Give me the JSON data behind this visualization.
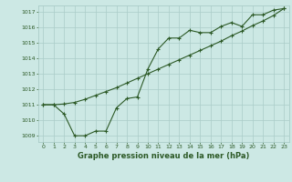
{
  "title": "Graphe pression niveau de la mer (hPa)",
  "bg_color": "#cce8e4",
  "grid_color": "#aaccc8",
  "line_color": "#2d5a27",
  "text_color": "#2d5a27",
  "xlim": [
    -0.5,
    23.5
  ],
  "ylim": [
    1008.6,
    1017.4
  ],
  "xticks": [
    0,
    1,
    2,
    3,
    4,
    5,
    6,
    7,
    8,
    9,
    10,
    11,
    12,
    13,
    14,
    15,
    16,
    17,
    18,
    19,
    20,
    21,
    22,
    23
  ],
  "yticks": [
    1009,
    1010,
    1011,
    1012,
    1013,
    1014,
    1015,
    1016,
    1017
  ],
  "line1_x": [
    0,
    1,
    2,
    3,
    4,
    5,
    6,
    7,
    8,
    9,
    10,
    11,
    12,
    13,
    14,
    15,
    16,
    17,
    18,
    19,
    20,
    21,
    22,
    23
  ],
  "line1_y": [
    1011.0,
    1011.0,
    1010.4,
    1009.0,
    1009.0,
    1009.3,
    1009.3,
    1010.8,
    1011.4,
    1011.5,
    1013.3,
    1014.6,
    1015.3,
    1015.3,
    1015.8,
    1015.65,
    1015.65,
    1016.05,
    1016.3,
    1016.05,
    1016.8,
    1016.8,
    1017.1,
    1017.2
  ],
  "line2_x": [
    0,
    1,
    2,
    3,
    4,
    5,
    6,
    7,
    8,
    9,
    10,
    11,
    12,
    13,
    14,
    15,
    16,
    17,
    18,
    19,
    20,
    21,
    22,
    23
  ],
  "line2_y": [
    1011.0,
    1011.0,
    1011.05,
    1011.15,
    1011.35,
    1011.6,
    1011.85,
    1012.1,
    1012.4,
    1012.7,
    1013.0,
    1013.3,
    1013.6,
    1013.9,
    1014.2,
    1014.5,
    1014.8,
    1015.1,
    1015.45,
    1015.75,
    1016.1,
    1016.4,
    1016.75,
    1017.2
  ]
}
